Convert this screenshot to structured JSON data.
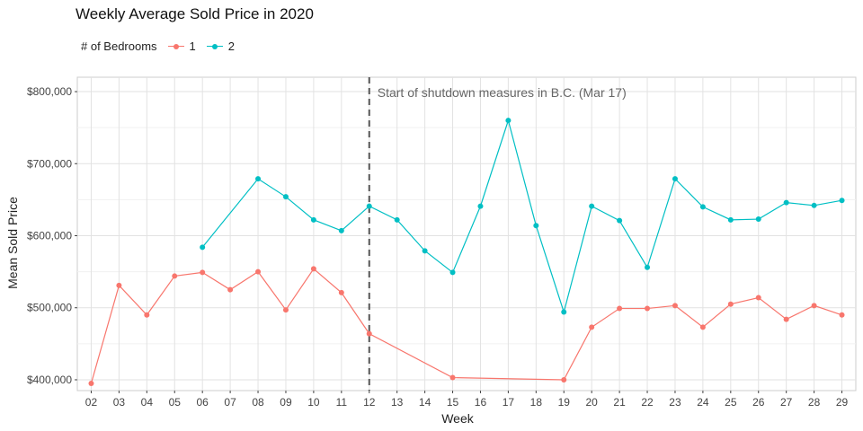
{
  "chart_data": {
    "type": "line",
    "title": "Weekly Average Sold Price in 2020",
    "xlabel": "Week",
    "ylabel": "Mean Sold Price",
    "legend": {
      "title": "# of Bedrooms",
      "position": "top-left"
    },
    "categories": [
      "02",
      "03",
      "04",
      "05",
      "06",
      "07",
      "08",
      "09",
      "10",
      "11",
      "12",
      "13",
      "14",
      "15",
      "16",
      "17",
      "18",
      "19",
      "20",
      "21",
      "22",
      "23",
      "24",
      "25",
      "26",
      "27",
      "28",
      "29"
    ],
    "ylim": [
      385000,
      820000
    ],
    "yticks": [
      400000,
      500000,
      600000,
      700000,
      800000
    ],
    "ytick_labels": [
      "$400,000",
      "$500,000",
      "$600,000",
      "$700,000",
      "$800,000"
    ],
    "grid": true,
    "series": [
      {
        "name": "1",
        "color": "#F8766D",
        "values": [
          395000,
          531000,
          490000,
          544000,
          549000,
          525000,
          550000,
          497000,
          554000,
          521000,
          464000,
          null,
          null,
          403000,
          null,
          null,
          null,
          400000,
          473000,
          499000,
          499000,
          503000,
          473000,
          505000,
          514000,
          484000,
          503000,
          490000
        ]
      },
      {
        "name": "2",
        "color": "#00BFC4",
        "values": [
          null,
          null,
          null,
          null,
          584000,
          null,
          679000,
          654000,
          622000,
          607000,
          641000,
          622000,
          579000,
          549000,
          641000,
          760000,
          614000,
          494000,
          641000,
          621000,
          556000,
          679000,
          640000,
          622000,
          623000,
          646000,
          642000,
          649000
        ]
      }
    ],
    "annotations": [
      {
        "type": "vline",
        "x": "12",
        "style": "dashed",
        "color": "#555555",
        "label": "Start of shutdown measures in B.C. (Mar 17)"
      }
    ]
  }
}
